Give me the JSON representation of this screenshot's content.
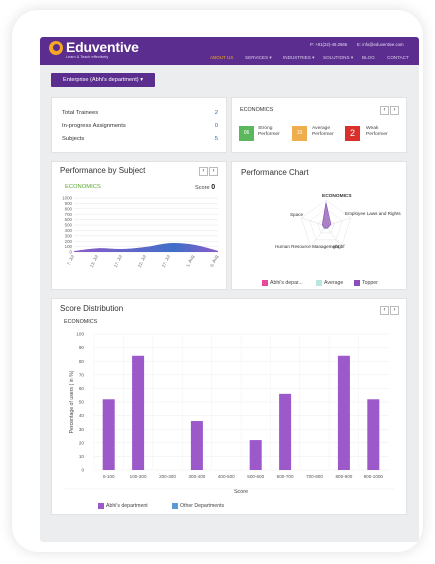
{
  "header": {
    "brand": "Eduventive",
    "tagline": "Learn & Teach effectively",
    "phone": "P: +91(22)-49.2566",
    "email": "E: info@eduventive.com",
    "nav": [
      {
        "label": "ABOUT US"
      },
      {
        "label": "SERVICES ▾"
      },
      {
        "label": "INDUSTRIES ▾"
      },
      {
        "label": "SOLUTIONS ▾"
      },
      {
        "label": "BLOG"
      },
      {
        "label": "CONTACT"
      }
    ]
  },
  "department_button": "Enterprise (Abhi's department) ▾",
  "stats": [
    {
      "label": "Total Trainees",
      "value": "2"
    },
    {
      "label": "In-progress Assignments",
      "value": "0"
    },
    {
      "label": "Subjects",
      "value": "5"
    }
  ],
  "performance_summary": {
    "subject": "ECONOMICS",
    "pager": [
      "‹",
      "›"
    ],
    "levels": [
      {
        "count": "06",
        "label_line1": "Strong",
        "label_line2": "Performer",
        "color": "#5cb85c"
      },
      {
        "count": "10",
        "label_line1": "Average",
        "label_line2": "Performer",
        "color": "#f0ad4e"
      },
      {
        "count": "2",
        "label_line1": "Weak",
        "label_line2": "Performer",
        "color": "#d9302c"
      }
    ]
  },
  "performance_by_subject": {
    "title": "Performance by Subject",
    "subject": "ECONOMICS",
    "score_label": "Score",
    "score_value": "0",
    "pager": [
      "‹",
      "›"
    ]
  },
  "performance_chart": {
    "title": "Performance Chart"
  },
  "score_distribution": {
    "title": "Score Distribution",
    "subject": "ECONOMICS",
    "pager": [
      "‹",
      "›"
    ]
  },
  "chart_data": [
    {
      "type": "area",
      "x": [
        "7. Jul",
        "13. Jul",
        "17. Jul",
        "22. Jul",
        "27. Jul",
        "1. Aug",
        "6. Aug"
      ],
      "y": [
        18,
        70,
        55,
        95,
        165,
        135,
        22
      ],
      "ylim": [
        0,
        1000
      ],
      "yticks": [
        0,
        100,
        200,
        300,
        400,
        500,
        600,
        700,
        800,
        900,
        1000
      ],
      "colors": [
        "#8b5cc9",
        "#3f6fc8"
      ]
    },
    {
      "type": "radar",
      "axes": [
        "ECONOMICS",
        "Employee Laws and Rights",
        "gbgbf",
        "Human Resource Management",
        "Space"
      ],
      "series": [
        {
          "name": "Abhi's depar...",
          "color": "#e8489b",
          "values": [
            0.9,
            0.12,
            0.1,
            0.1,
            0.12
          ]
        },
        {
          "name": "Average",
          "color": "#b9e6de",
          "values": [
            0.9,
            0.18,
            0.12,
            0.15,
            0.15
          ]
        },
        {
          "name": "Topper",
          "color": "#8b4fb8",
          "values": [
            0.9,
            0.2,
            0.1,
            0.1,
            0.15
          ]
        }
      ]
    },
    {
      "type": "bar",
      "categories": [
        "0-100",
        "100-200",
        "200-300",
        "300-400",
        "400-500",
        "500-600",
        "600-700",
        "700-800",
        "800-900",
        "900-1000"
      ],
      "series": [
        {
          "name": "Abhi's department",
          "color": "#9b59c9",
          "values": [
            52,
            84,
            0,
            36,
            0,
            22,
            56,
            0,
            84,
            52
          ]
        },
        {
          "name": "Other Departments",
          "color": "#5b9bd5",
          "values": [
            0,
            0,
            0,
            0,
            0,
            0,
            0,
            0,
            0,
            0
          ]
        }
      ],
      "xlabel": "Score",
      "ylabel": "Percentage of users ( in %)",
      "ylim": [
        0,
        100
      ],
      "yticks": [
        0,
        10,
        20,
        30,
        40,
        50,
        60,
        70,
        80,
        90,
        100
      ]
    }
  ]
}
